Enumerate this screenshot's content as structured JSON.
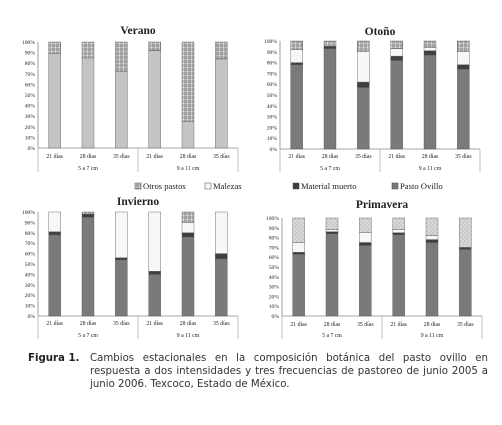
{
  "figure": {
    "legend": [
      "Otros pastos",
      "Malezas",
      "Material muerto",
      "Pasto Ovillo"
    ],
    "caption_label": "Figura 1.",
    "caption_text": "Cambios estacionales en la composición botánica del pasto ovillo en respuesta a dos intensidades y tres frecuencias de pastoreo de junio 2005 a junio 2006. Texcoco, Estado de México."
  },
  "colors": {
    "Pasto Ovillo": "#7a7a7a",
    "Material muerto": "#3c3c3c",
    "Malezas": "#f7f7f7",
    "Otros pastos": "#b8b8b8",
    "Verano_base": "#c4c4c4"
  },
  "chart_data": [
    {
      "type": "bar",
      "stacked": true,
      "title": "Verano",
      "categories": [
        "21 días",
        "28 días",
        "35 días",
        "21 días",
        "28 días",
        "35 días"
      ],
      "groups": [
        {
          "label": "5 a 7 cm",
          "categories": 3
        },
        {
          "label": "9 a 11 cm",
          "categories": 3
        }
      ],
      "ylim": [
        0,
        100
      ],
      "yticks": [
        "0%",
        "10%",
        "20%",
        "30%",
        "40%",
        "50%",
        "60%",
        "70%",
        "80%",
        "90%",
        "100%"
      ],
      "series": [
        {
          "name": "Pasto Ovillo",
          "values": [
            89,
            85,
            72,
            92,
            25,
            84
          ]
        },
        {
          "name": "Material muerto",
          "values": [
            0,
            0,
            0,
            0,
            0,
            0
          ]
        },
        {
          "name": "Malezas",
          "values": [
            0,
            0,
            0,
            0,
            0,
            0
          ]
        },
        {
          "name": "Otros pastos",
          "values": [
            11,
            15,
            28,
            8,
            75,
            16
          ]
        }
      ]
    },
    {
      "type": "bar",
      "stacked": true,
      "title": "Otoño",
      "categories": [
        "21 días",
        "28 días",
        "35 días",
        "21 días",
        "28 días",
        "35 días"
      ],
      "groups": [
        {
          "label": "5 a 7 cm",
          "categories": 3
        },
        {
          "label": "9 a 11 cm",
          "categories": 3
        }
      ],
      "ylim": [
        0,
        100
      ],
      "yticks": [
        "0%",
        "10%",
        "20%",
        "30%",
        "40%",
        "50%",
        "60%",
        "70%",
        "80%",
        "90%",
        "100%"
      ],
      "series": [
        {
          "name": "Pasto Ovillo",
          "values": [
            78,
            93,
            57,
            82,
            87,
            74
          ]
        },
        {
          "name": "Material muerto",
          "values": [
            2,
            2,
            5,
            4,
            4,
            4
          ]
        },
        {
          "name": "Malezas",
          "values": [
            12,
            0,
            28,
            7,
            3,
            12
          ]
        },
        {
          "name": "Otros pastos",
          "values": [
            8,
            5,
            10,
            7,
            6,
            10
          ]
        }
      ]
    },
    {
      "type": "bar",
      "stacked": true,
      "title": "Invierno",
      "categories": [
        "21 días",
        "28 días",
        "35 días",
        "21 días",
        "28 días",
        "35 días"
      ],
      "groups": [
        {
          "label": "5 a 7 cm",
          "categories": 3
        },
        {
          "label": "9 a 11 cm",
          "categories": 3
        }
      ],
      "ylim": [
        0,
        100
      ],
      "yticks": [
        "0%",
        "10%",
        "20%",
        "30%",
        "40%",
        "50%",
        "60%",
        "70%",
        "80%",
        "90%",
        "100%"
      ],
      "series": [
        {
          "name": "Pasto Ovillo",
          "values": [
            78,
            95,
            54,
            40,
            76,
            55
          ]
        },
        {
          "name": "Material muerto",
          "values": [
            3,
            3,
            2,
            3,
            4,
            5
          ]
        },
        {
          "name": "Malezas",
          "values": [
            19,
            0,
            44,
            57,
            10,
            40
          ]
        },
        {
          "name": "Otros pastos",
          "values": [
            0,
            2,
            0,
            0,
            10,
            0
          ]
        }
      ]
    },
    {
      "type": "bar",
      "stacked": true,
      "title": "Primavera",
      "categories": [
        "21 días",
        "28 días",
        "35 días",
        "21 días",
        "28 días",
        "35 días"
      ],
      "groups": [
        {
          "label": "5 a 7 cm",
          "categories": 3
        },
        {
          "label": "9 a 11 cm",
          "categories": 3
        }
      ],
      "ylim": [
        0,
        100
      ],
      "yticks": [
        "0%",
        "10%",
        "20%",
        "30%",
        "40%",
        "50%",
        "60%",
        "70%",
        "80%",
        "90%",
        "100%"
      ],
      "series": [
        {
          "name": "Pasto Ovillo",
          "values": [
            63,
            84,
            72,
            83,
            75,
            68
          ]
        },
        {
          "name": "Material muerto",
          "values": [
            2,
            2,
            3,
            2,
            3,
            2
          ]
        },
        {
          "name": "Malezas",
          "values": [
            10,
            2,
            10,
            3,
            4,
            0
          ]
        },
        {
          "name": "Otros pastos",
          "values": [
            25,
            12,
            15,
            12,
            18,
            30
          ]
        }
      ]
    }
  ]
}
